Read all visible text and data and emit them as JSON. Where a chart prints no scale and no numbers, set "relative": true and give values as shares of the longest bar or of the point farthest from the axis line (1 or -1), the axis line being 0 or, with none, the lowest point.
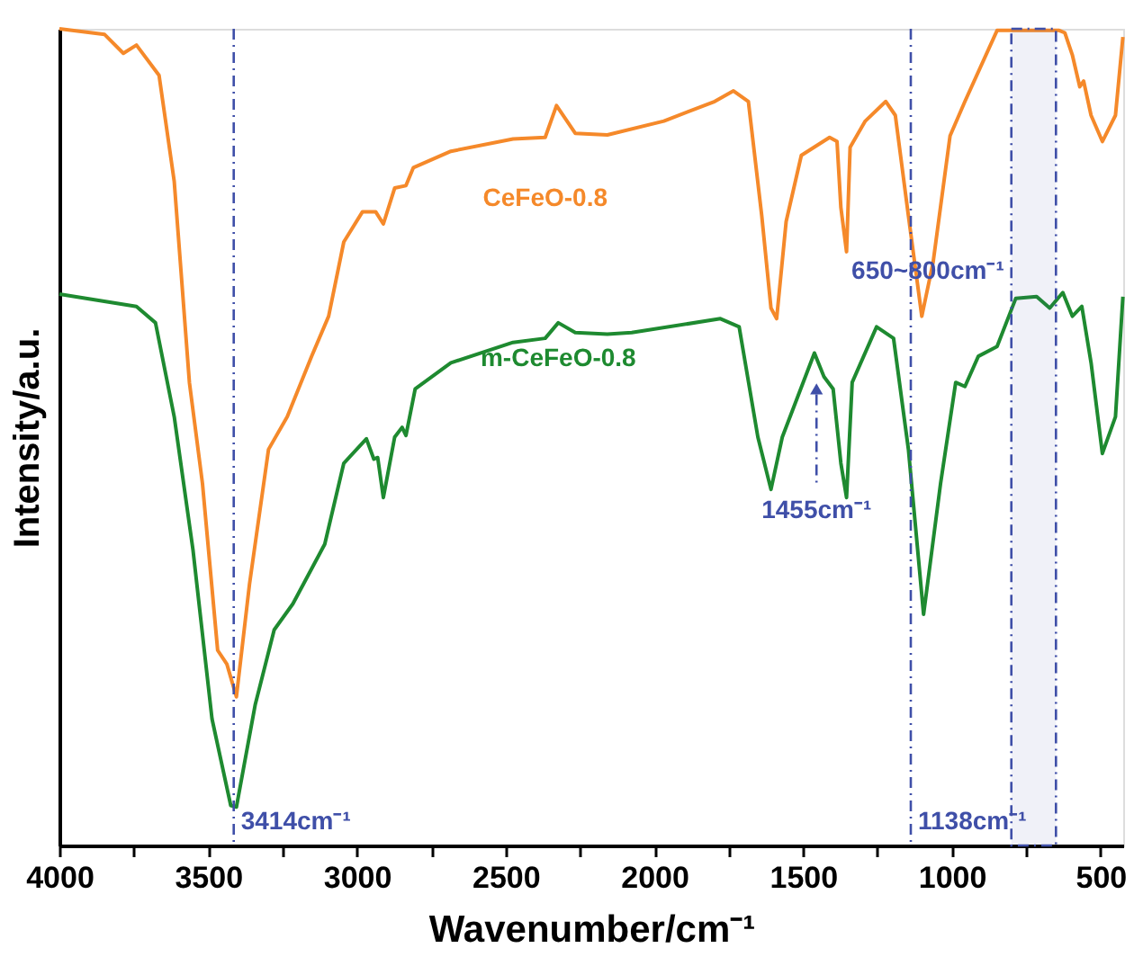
{
  "chart_data": {
    "type": "line",
    "relative": true,
    "xlabel": "Wavenumber/cm⁻¹",
    "ylabel": "Intensity/a.u.",
    "xlim": [
      4000,
      424
    ],
    "xticks": [
      4000,
      {
        "value": 3750,
        "label": null
      },
      3500,
      {
        "value": 3250,
        "label": null
      },
      3000,
      {
        "value": 2750,
        "label": null
      },
      2500,
      {
        "value": 2250,
        "label": null
      },
      2000,
      {
        "value": 1750,
        "label": null
      },
      1500,
      {
        "value": 1250,
        "label": null
      },
      1000,
      {
        "value": 750,
        "label": null
      },
      500
    ],
    "tick_labels": "x",
    "grid": false,
    "marker": "none",
    "line_style": "solid",
    "series": [
      {
        "name": "CeFeO-0.8",
        "color": "#f5892a",
        "x": [
          4000,
          3848,
          3785,
          3741,
          3665,
          3614,
          3563,
          3519,
          3468,
          3437,
          3405,
          3361,
          3297,
          3234,
          3152,
          3095,
          3044,
          2981,
          2937,
          2911,
          2873,
          2835,
          2810,
          2684,
          2475,
          2367,
          2329,
          2266,
          2158,
          1968,
          1797,
          1734,
          1684,
          1639,
          1608,
          1589,
          1557,
          1506,
          1411,
          1386,
          1373,
          1354,
          1342,
          1291,
          1222,
          1190,
          1146,
          1101,
          1063,
          1006,
          956,
          848,
          639,
          620,
          595,
          570,
          557,
          532,
          494,
          450,
          425
        ],
        "values": [
          1.0,
          0.993,
          0.97,
          0.98,
          0.943,
          0.813,
          0.567,
          0.443,
          0.239,
          0.222,
          0.182,
          0.32,
          0.485,
          0.525,
          0.599,
          0.648,
          0.739,
          0.776,
          0.776,
          0.761,
          0.805,
          0.808,
          0.83,
          0.85,
          0.865,
          0.867,
          0.906,
          0.872,
          0.87,
          0.887,
          0.911,
          0.924,
          0.911,
          0.771,
          0.658,
          0.645,
          0.764,
          0.845,
          0.867,
          0.862,
          0.781,
          0.727,
          0.855,
          0.887,
          0.911,
          0.894,
          0.771,
          0.648,
          0.714,
          0.869,
          0.911,
          0.998,
          0.998,
          0.995,
          0.968,
          0.929,
          0.936,
          0.894,
          0.862,
          0.894,
          0.99
        ]
      },
      {
        "name": "m-CeFeO-0.8",
        "color": "#1e8a30",
        "x": [
          4000,
          3741,
          3677,
          3614,
          3551,
          3487,
          3424,
          3405,
          3342,
          3278,
          3215,
          3108,
          3044,
          2968,
          2943,
          2930,
          2911,
          2873,
          2848,
          2835,
          2804,
          2684,
          2475,
          2367,
          2323,
          2266,
          2158,
          2076,
          1778,
          1715,
          1652,
          1608,
          1570,
          1462,
          1430,
          1399,
          1373,
          1354,
          1335,
          1253,
          1196,
          1146,
          1095,
          1038,
          987,
          956,
          911,
          848,
          785,
          715,
          671,
          627,
          595,
          563,
          532,
          494,
          450,
          425
        ],
        "values": [
          0.675,
          0.66,
          0.64,
          0.525,
          0.362,
          0.155,
          0.049,
          0.047,
          0.172,
          0.264,
          0.296,
          0.369,
          0.468,
          0.498,
          0.473,
          0.475,
          0.426,
          0.5,
          0.512,
          0.502,
          0.559,
          0.591,
          0.616,
          0.621,
          0.64,
          0.628,
          0.626,
          0.628,
          0.645,
          0.635,
          0.5,
          0.436,
          0.5,
          0.603,
          0.574,
          0.559,
          0.468,
          0.426,
          0.567,
          0.635,
          0.621,
          0.485,
          0.283,
          0.443,
          0.567,
          0.562,
          0.599,
          0.611,
          0.67,
          0.672,
          0.658,
          0.677,
          0.648,
          0.66,
          0.591,
          0.48,
          0.525,
          0.672
        ]
      }
    ],
    "ref_lines": [
      {
        "axis": "x",
        "value": 3414,
        "label": "3414cm⁻¹",
        "color": "#3f4fa8",
        "line_style": "dashed"
      },
      {
        "axis": "x",
        "value": 1138,
        "label": "1138cm⁻¹",
        "color": "#3f4fa8",
        "line_style": "dashed"
      }
    ],
    "bands": [
      {
        "axis": "x",
        "from": 800,
        "to": 650,
        "label": "650~800cm⁻¹",
        "color": "#3f4fa8"
      }
    ],
    "annotations": [
      {
        "text": "1455cm⁻¹",
        "x": 1455,
        "y": 0.57
      }
    ]
  }
}
